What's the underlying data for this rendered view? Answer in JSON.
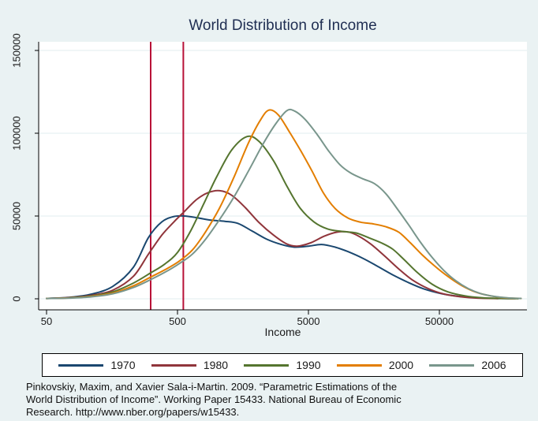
{
  "title": "World Distribution of Income",
  "footnote": {
    "lines": [
      "Pinkovskiy, Maxim, and Xavier Sala-i-Martin. 2009. “Parametric Estimations of the",
      "World Distribution of Income”. Working Paper 15433. National Bureau of Economic",
      "Research. http://www.nber.org/papers/w15433."
    ]
  },
  "colors": {
    "background": "#eaf2f3",
    "plot_background": "#ffffff",
    "gridline": "#e2edef",
    "axis": "#000000",
    "title_text": "#1f2e52",
    "reference_line": "#b81137"
  },
  "chart_data": {
    "type": "line",
    "title": "World Distribution of Income",
    "xlabel": "Income",
    "ylabel": "",
    "x_scale": "log",
    "xlim": [
      50,
      230000
    ],
    "ylim": [
      0,
      157000
    ],
    "x_ticks": [
      50,
      500,
      5000,
      50000
    ],
    "x_tick_labels": [
      "50",
      "500",
      "5000",
      "50000"
    ],
    "y_ticks": [
      0,
      50000,
      100000,
      150000
    ],
    "y_tick_labels": [
      "0",
      "50000",
      "100000",
      "150000"
    ],
    "grid": "horizontal",
    "legend_position": "bottom",
    "reference_lines_x": [
      312,
      554
    ],
    "series": [
      {
        "name": "1970",
        "color": "#1a476f",
        "points": [
          [
            50,
            250
          ],
          [
            75,
            900
          ],
          [
            110,
            2800
          ],
          [
            160,
            7500
          ],
          [
            230,
            19000
          ],
          [
            300,
            37000
          ],
          [
            380,
            46500
          ],
          [
            470,
            49700
          ],
          [
            560,
            50000
          ],
          [
            700,
            49000
          ],
          [
            900,
            47500
          ],
          [
            1150,
            46800
          ],
          [
            1450,
            45500
          ],
          [
            1850,
            41000
          ],
          [
            2400,
            36000
          ],
          [
            3100,
            32800
          ],
          [
            3900,
            31200
          ],
          [
            5000,
            31800
          ],
          [
            6300,
            32800
          ],
          [
            8000,
            31200
          ],
          [
            10000,
            28500
          ],
          [
            13000,
            24500
          ],
          [
            17000,
            19500
          ],
          [
            22000,
            14500
          ],
          [
            29000,
            9800
          ],
          [
            38000,
            6000
          ],
          [
            52000,
            3100
          ],
          [
            70000,
            1500
          ],
          [
            95000,
            650
          ],
          [
            135000,
            230
          ],
          [
            190000,
            80
          ]
        ]
      },
      {
        "name": "1980",
        "color": "#90353b",
        "points": [
          [
            50,
            220
          ],
          [
            75,
            700
          ],
          [
            110,
            2100
          ],
          [
            160,
            5200
          ],
          [
            230,
            13500
          ],
          [
            300,
            27000
          ],
          [
            380,
            38500
          ],
          [
            470,
            46500
          ],
          [
            560,
            52500
          ],
          [
            700,
            60000
          ],
          [
            850,
            64000
          ],
          [
            1050,
            65300
          ],
          [
            1300,
            62500
          ],
          [
            1650,
            55000
          ],
          [
            2100,
            46000
          ],
          [
            2700,
            38500
          ],
          [
            3400,
            33200
          ],
          [
            4100,
            31800
          ],
          [
            5200,
            33800
          ],
          [
            6600,
            37800
          ],
          [
            8300,
            40300
          ],
          [
            10000,
            40400
          ],
          [
            12000,
            38000
          ],
          [
            15000,
            33000
          ],
          [
            19000,
            26000
          ],
          [
            24500,
            18000
          ],
          [
            31000,
            11500
          ],
          [
            41000,
            6200
          ],
          [
            54000,
            2900
          ],
          [
            72000,
            1250
          ],
          [
            98000,
            450
          ],
          [
            140000,
            140
          ]
        ]
      },
      {
        "name": "1990",
        "color": "#55752f",
        "points": [
          [
            50,
            200
          ],
          [
            75,
            600
          ],
          [
            110,
            1700
          ],
          [
            160,
            4200
          ],
          [
            230,
            9500
          ],
          [
            310,
            15500
          ],
          [
            400,
            21000
          ],
          [
            500,
            28000
          ],
          [
            630,
            41000
          ],
          [
            800,
            58000
          ],
          [
            1000,
            74000
          ],
          [
            1300,
            90000
          ],
          [
            1700,
            98000
          ],
          [
            2100,
            95000
          ],
          [
            2700,
            83500
          ],
          [
            3400,
            68500
          ],
          [
            4300,
            55000
          ],
          [
            5500,
            46500
          ],
          [
            7000,
            42200
          ],
          [
            9000,
            40700
          ],
          [
            11500,
            39800
          ],
          [
            14500,
            36800
          ],
          [
            18000,
            33800
          ],
          [
            22000,
            30000
          ],
          [
            27000,
            23500
          ],
          [
            34000,
            15800
          ],
          [
            44000,
            8800
          ],
          [
            58000,
            4200
          ],
          [
            78000,
            1800
          ],
          [
            105000,
            650
          ],
          [
            145000,
            220
          ],
          [
            200000,
            70
          ]
        ]
      },
      {
        "name": "2000",
        "color": "#e37e00",
        "points": [
          [
            50,
            180
          ],
          [
            75,
            500
          ],
          [
            110,
            1400
          ],
          [
            160,
            3400
          ],
          [
            230,
            7800
          ],
          [
            310,
            13000
          ],
          [
            400,
            17500
          ],
          [
            510,
            22500
          ],
          [
            650,
            29500
          ],
          [
            820,
            40500
          ],
          [
            1050,
            55000
          ],
          [
            1350,
            73500
          ],
          [
            1750,
            94500
          ],
          [
            2150,
            108000
          ],
          [
            2500,
            114000
          ],
          [
            2950,
            111000
          ],
          [
            3600,
            100500
          ],
          [
            4400,
            89000
          ],
          [
            5300,
            77500
          ],
          [
            6500,
            64000
          ],
          [
            8000,
            54500
          ],
          [
            10000,
            48800
          ],
          [
            12500,
            46300
          ],
          [
            15500,
            45300
          ],
          [
            19500,
            43500
          ],
          [
            24500,
            40200
          ],
          [
            30000,
            33800
          ],
          [
            37000,
            26500
          ],
          [
            46000,
            19800
          ],
          [
            58000,
            13500
          ],
          [
            74000,
            8000
          ],
          [
            95000,
            4000
          ],
          [
            122000,
            1800
          ],
          [
            158000,
            600
          ],
          [
            210000,
            170
          ]
        ]
      },
      {
        "name": "2006",
        "color": "#79968c",
        "points": [
          [
            50,
            170
          ],
          [
            75,
            450
          ],
          [
            110,
            1200
          ],
          [
            160,
            3000
          ],
          [
            230,
            6800
          ],
          [
            310,
            11500
          ],
          [
            400,
            16000
          ],
          [
            510,
            21000
          ],
          [
            650,
            27000
          ],
          [
            820,
            36000
          ],
          [
            1050,
            48000
          ],
          [
            1350,
            61500
          ],
          [
            1750,
            77500
          ],
          [
            2250,
            93500
          ],
          [
            2800,
            105500
          ],
          [
            3400,
            113500
          ],
          [
            3900,
            113500
          ],
          [
            4700,
            108500
          ],
          [
            5800,
            99500
          ],
          [
            7100,
            89500
          ],
          [
            8700,
            81000
          ],
          [
            10500,
            76000
          ],
          [
            13000,
            72500
          ],
          [
            16000,
            69500
          ],
          [
            19500,
            63500
          ],
          [
            24000,
            54000
          ],
          [
            29500,
            44000
          ],
          [
            36000,
            34000
          ],
          [
            44000,
            25000
          ],
          [
            54000,
            17200
          ],
          [
            67000,
            10800
          ],
          [
            83000,
            6200
          ],
          [
            103000,
            3200
          ],
          [
            130000,
            1500
          ],
          [
            165000,
            600
          ],
          [
            210000,
            220
          ]
        ]
      }
    ]
  }
}
